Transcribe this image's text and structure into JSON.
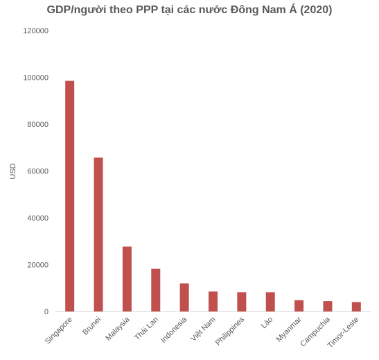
{
  "chart_data": {
    "type": "bar",
    "title": "GDP/người theo PPP tại các nước Đông Nam Á (2020)",
    "xlabel": "",
    "ylabel": "USD",
    "ylim": [
      0,
      120000
    ],
    "yticks": [
      0,
      20000,
      40000,
      60000,
      80000,
      100000,
      120000
    ],
    "categories": [
      "Singapore",
      "Brunei",
      "Malaysia",
      "Thái Lan",
      "Indonesia",
      "Việt Nam",
      "Philippines",
      "Lào",
      "Myanmar",
      "Campuchia",
      "Timor-Leste"
    ],
    "values": [
      98500,
      65700,
      27700,
      18200,
      12000,
      8500,
      8200,
      8200,
      4800,
      4400,
      4000
    ],
    "bar_color": "#c0504d",
    "grid": false,
    "legend": "none"
  }
}
